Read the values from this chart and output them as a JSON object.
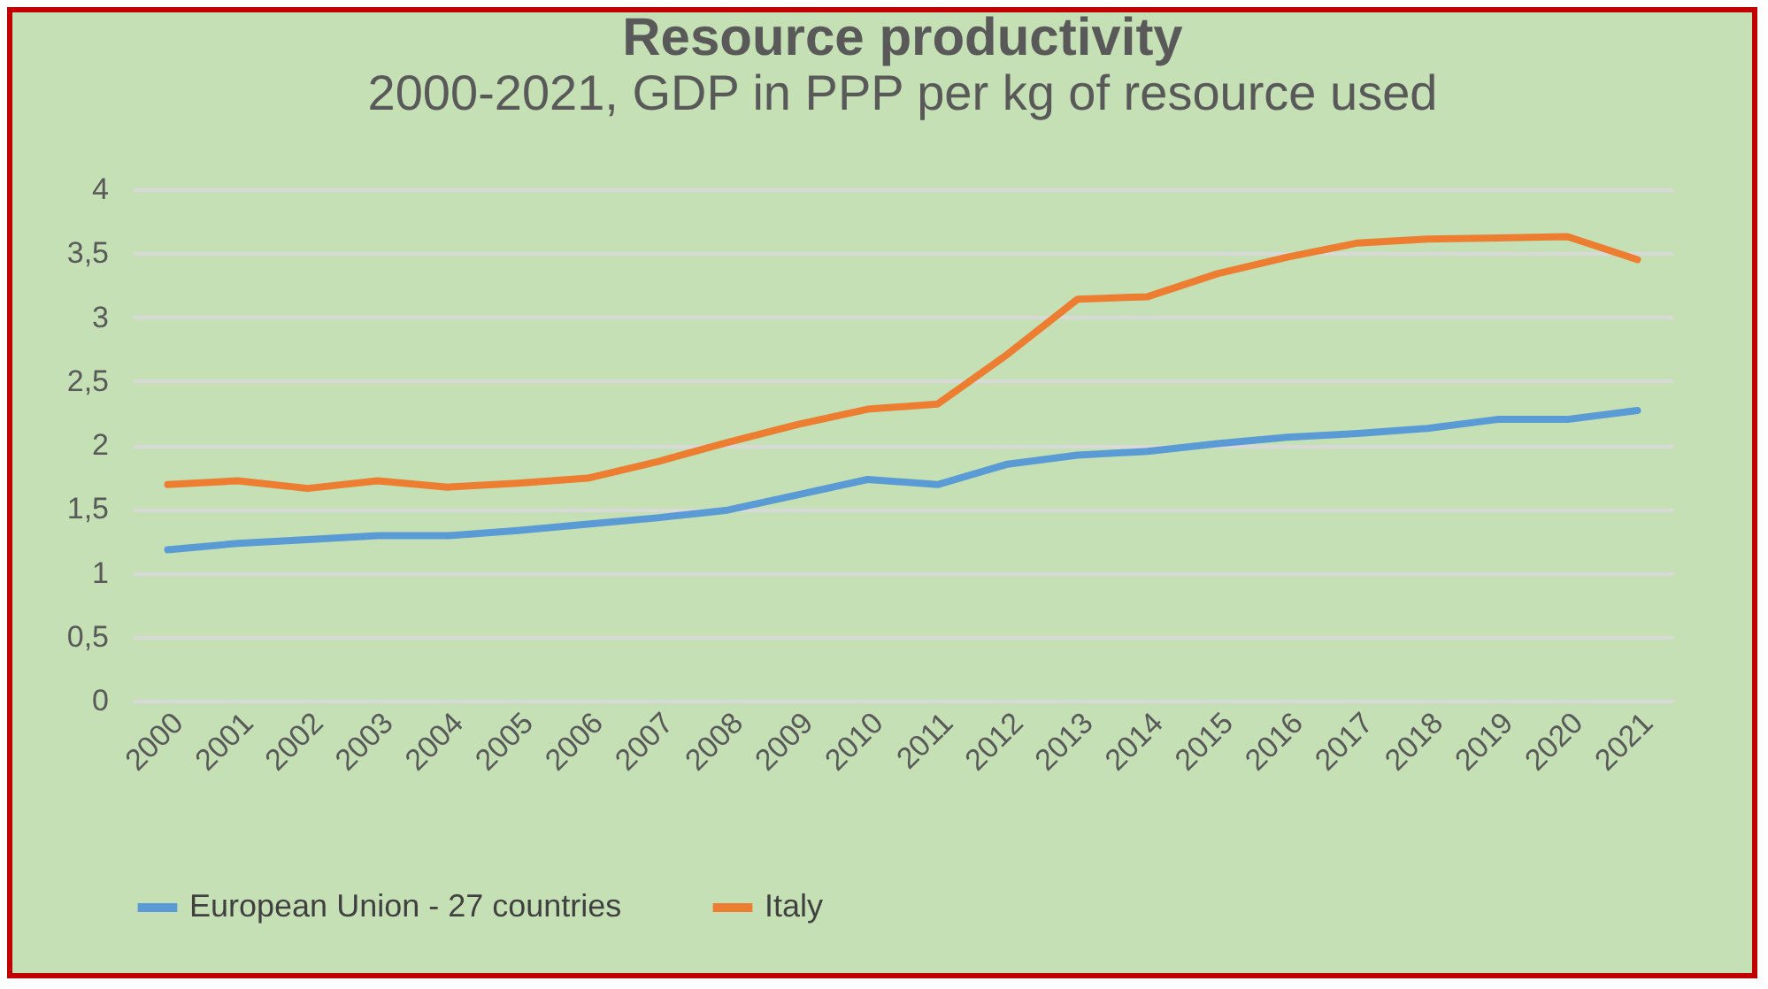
{
  "chart_data": {
    "type": "line",
    "title": "Resource productivity",
    "subtitle": "2000-2021, GDP in PPP per kg of resource used",
    "categories": [
      "2000",
      "2001",
      "2002",
      "2003",
      "2004",
      "2005",
      "2006",
      "2007",
      "2008",
      "2009",
      "2010",
      "2011",
      "2012",
      "2013",
      "2014",
      "2015",
      "2016",
      "2017",
      "2018",
      "2019",
      "2020",
      "2021"
    ],
    "series": [
      {
        "name": "European Union - 27 countries",
        "color": "#5b9bd5",
        "values": [
          1.18,
          1.23,
          1.26,
          1.29,
          1.29,
          1.33,
          1.38,
          1.43,
          1.49,
          1.61,
          1.73,
          1.69,
          1.85,
          1.92,
          1.95,
          2.01,
          2.06,
          2.09,
          2.13,
          2.2,
          2.2,
          2.27
        ]
      },
      {
        "name": "Italy",
        "color": "#ed7d31",
        "values": [
          1.69,
          1.72,
          1.66,
          1.72,
          1.67,
          1.7,
          1.74,
          1.87,
          2.02,
          2.16,
          2.28,
          2.32,
          2.71,
          3.14,
          3.16,
          3.34,
          3.47,
          3.58,
          3.61,
          3.62,
          3.63,
          3.45
        ]
      }
    ],
    "ylim": [
      0,
      4
    ],
    "yticks": [
      0,
      {
        "value": 0.5,
        "label": "0,5"
      },
      1,
      {
        "value": 1.5,
        "label": "1,5"
      },
      2,
      {
        "value": 2.5,
        "label": "2,5"
      },
      3,
      {
        "value": 3.5,
        "label": "3,5"
      },
      4
    ],
    "grid": "y",
    "legend": "bottom",
    "marker": "none",
    "line_style": "solid"
  }
}
